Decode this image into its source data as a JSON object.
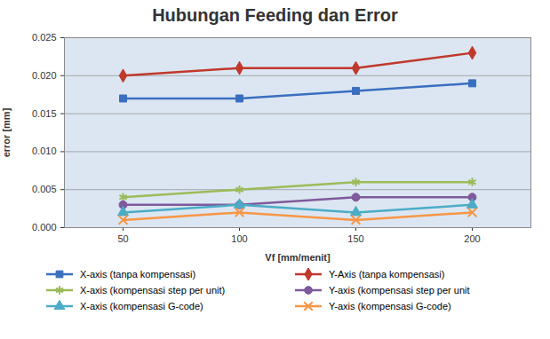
{
  "chart_data": {
    "type": "line",
    "title": "Hubungan Feeding dan Error",
    "x_label": "Vf [mm/menit]",
    "y_label": "error [mm]",
    "categories": [
      50,
      100,
      150,
      200
    ],
    "series": [
      {
        "name": "X-axis (tanpa kompensasi)",
        "color": "#3a6fc0",
        "marker": "square",
        "values": [
          0.017,
          0.017,
          0.018,
          0.019
        ]
      },
      {
        "name": "Y-Axis (tanpa kompensasi)",
        "color": "#c0392b",
        "marker": "diamond",
        "values": [
          0.02,
          0.021,
          0.021,
          0.023
        ]
      },
      {
        "name": "X-axis (kompensasi step per unit)",
        "color": "#9bbb59",
        "marker": "asterisk",
        "values": [
          0.004,
          0.005,
          0.006,
          0.006
        ]
      },
      {
        "name": "Y-axis (kompensasi step per unit",
        "color": "#7e5a9b",
        "marker": "circle",
        "values": [
          0.003,
          0.003,
          0.004,
          0.004
        ]
      },
      {
        "name": "X-axis (kompensasi G-code)",
        "color": "#4bacc6",
        "marker": "triangle",
        "values": [
          0.002,
          0.003,
          0.002,
          0.003
        ]
      },
      {
        "name": "Y-axis (kompensasi G-code)",
        "color": "#f79646",
        "marker": "times",
        "values": [
          0.001,
          0.002,
          0.001,
          0.002
        ]
      }
    ],
    "ylim": [
      0,
      0.025
    ],
    "yticks": [
      {
        "value": 0,
        "label": "0.000"
      },
      {
        "value": 0.005,
        "label": "0.005"
      },
      {
        "value": 0.01,
        "label": "0.010"
      },
      {
        "value": 0.015,
        "label": "0.015"
      },
      {
        "value": 0.02,
        "label": "0.020"
      },
      {
        "value": 0.025,
        "label": "0.025"
      }
    ],
    "grid": true,
    "legend": "bottom"
  }
}
